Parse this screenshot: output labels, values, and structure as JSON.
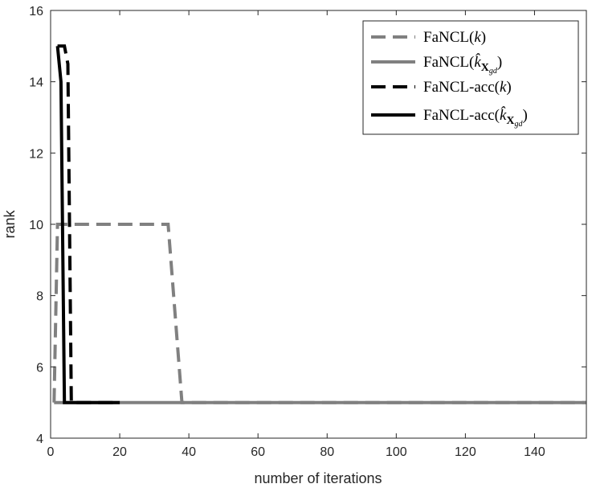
{
  "chart_data": {
    "type": "line",
    "title": "",
    "xlabel": "number of iterations",
    "ylabel": "rank",
    "xlim": [
      0,
      155
    ],
    "ylim": [
      4,
      16
    ],
    "xticks": [
      0,
      20,
      40,
      60,
      80,
      100,
      120,
      140
    ],
    "yticks": [
      4,
      6,
      8,
      10,
      12,
      14,
      16
    ],
    "grid": false,
    "legend_position": "top-right",
    "series": [
      {
        "name": "FaNCL(k)",
        "legend_parts": [
          "FaNCL(",
          "k",
          ")"
        ],
        "color": "#808080",
        "style": "dashed",
        "x": [
          1,
          2,
          34,
          38,
          155
        ],
        "y": [
          5,
          10,
          10,
          5,
          5
        ]
      },
      {
        "name": "FaNCL(k̂_Xgd)",
        "legend_parts": [
          "FaNCL(",
          "k̂",
          "X",
          "gd",
          ")"
        ],
        "color": "#808080",
        "style": "solid",
        "x": [
          1,
          155
        ],
        "y": [
          5,
          5
        ]
      },
      {
        "name": "FaNCL-acc(k)",
        "legend_parts": [
          "FaNCL-acc(",
          "k",
          ")"
        ],
        "color": "#000000",
        "style": "dashed",
        "x": [
          2,
          4,
          5,
          6,
          20
        ],
        "y": [
          15,
          15,
          14.5,
          5,
          5
        ]
      },
      {
        "name": "FaNCL-acc(k̂_Xgd)",
        "legend_parts": [
          "FaNCL-acc(",
          "k̂",
          "X",
          "gd",
          ")"
        ],
        "color": "#000000",
        "style": "solid",
        "x": [
          2,
          3,
          4,
          20
        ],
        "y": [
          15,
          14,
          5,
          5
        ]
      }
    ]
  }
}
